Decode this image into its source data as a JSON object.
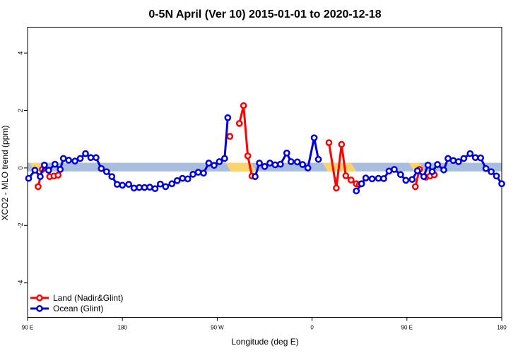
{
  "chart_data": {
    "type": "line",
    "title": "0-5N April (Ver 10)   2015-01-01 to 2020-12-18",
    "xlabel": "Longitude (deg E)",
    "ylabel": "XCO2 - MLO trend (ppm)",
    "x_ticks": [
      {
        "value": 90,
        "label": "90 E"
      },
      {
        "value": 180,
        "label": "180"
      },
      {
        "value": 270,
        "label": "90 W"
      },
      {
        "value": 360,
        "label": "0"
      },
      {
        "value": 450,
        "label": "90 E"
      },
      {
        "value": 540,
        "label": "180"
      }
    ],
    "y_ticks": [
      -4,
      -2,
      0,
      2,
      4
    ],
    "xlim": [
      90,
      540
    ],
    "ylim": [
      -5.2,
      4.9
    ],
    "legend_position": "bottom-left",
    "colors": {
      "land": "#ff0000",
      "ocean": "#0000dd",
      "ocean_band": "#a9bddf",
      "land_band": "#ffd36b"
    },
    "land_bands": [
      {
        "x": [
          92,
          102
        ],
        "y": [
          -0.12,
          0.18
        ]
      },
      {
        "x": [
          278,
          302
        ],
        "y": [
          -0.12,
          0.18
        ]
      },
      {
        "x": [
          370,
          397
        ],
        "y": [
          -0.12,
          0.18
        ]
      },
      {
        "x": [
          452,
          462
        ],
        "y": [
          -0.12,
          0.18
        ]
      }
    ],
    "series": [
      {
        "name": "Land (Nadir&Glint)",
        "key": "land",
        "segments": [
          [
            [
              100,
              -0.65
            ],
            [
              104,
              -0.05
            ]
          ],
          [
            [
              111,
              -0.3
            ],
            [
              115,
              -0.28
            ],
            [
              119,
              -0.25
            ]
          ],
          [
            [
              282,
              1.1
            ]
          ],
          [
            [
              291,
              1.55
            ],
            [
              295,
              2.17
            ],
            [
              299,
              0.42
            ],
            [
              303,
              -0.28
            ]
          ],
          [
            [
              376,
              0.88
            ],
            [
              383,
              -0.7
            ],
            [
              388,
              0.82
            ],
            [
              392,
              -0.27
            ],
            [
              397,
              -0.42
            ],
            [
              402,
              -0.55
            ],
            [
              405,
              -0.57
            ]
          ],
          [
            [
              458,
              -0.65
            ],
            [
              462,
              -0.05
            ]
          ],
          [
            [
              468,
              -0.32
            ],
            [
              472,
              -0.28
            ],
            [
              476,
              -0.24
            ]
          ]
        ]
      },
      {
        "name": "Ocean (Glint)",
        "key": "ocean",
        "segments": [
          [
            [
              91,
              -0.36
            ],
            [
              97,
              -0.08
            ],
            [
              102,
              -0.3
            ],
            [
              106,
              0.1
            ],
            [
              110,
              -0.08
            ],
            [
              116,
              0.13
            ],
            [
              121,
              -0.05
            ],
            [
              124,
              0.33
            ],
            [
              129,
              0.27
            ],
            [
              135,
              0.24
            ],
            [
              140,
              0.33
            ],
            [
              145,
              0.5
            ],
            [
              150,
              0.36
            ],
            [
              155,
              0.36
            ],
            [
              160,
              -0.02
            ],
            [
              165,
              -0.13
            ],
            [
              170,
              -0.3
            ],
            [
              175,
              -0.57
            ],
            [
              180,
              -0.6
            ],
            [
              186,
              -0.57
            ],
            [
              191,
              -0.7
            ],
            [
              196,
              -0.68
            ],
            [
              201,
              -0.68
            ],
            [
              206,
              -0.67
            ],
            [
              211,
              -0.72
            ],
            [
              216,
              -0.56
            ],
            [
              221,
              -0.65
            ],
            [
              227,
              -0.55
            ],
            [
              232,
              -0.44
            ],
            [
              237,
              -0.36
            ],
            [
              242,
              -0.38
            ],
            [
              247,
              -0.22
            ],
            [
              252,
              -0.15
            ],
            [
              257,
              -0.18
            ],
            [
              262,
              0.17
            ],
            [
              267,
              0.09
            ],
            [
              272,
              0.22
            ],
            [
              277,
              0.33
            ],
            [
              280,
              1.75
            ]
          ],
          [
            [
              306,
              -0.3
            ],
            [
              310,
              0.17
            ],
            [
              315,
              0.05
            ],
            [
              320,
              0.17
            ],
            [
              325,
              0.11
            ],
            [
              330,
              0.13
            ],
            [
              336,
              0.52
            ],
            [
              340,
              0.22
            ],
            [
              346,
              0.21
            ],
            [
              351,
              0.12
            ],
            [
              356,
              0.0
            ],
            [
              362,
              1.05
            ],
            [
              366,
              0.3
            ]
          ],
          [
            [
              402,
              -0.8
            ],
            [
              407,
              -0.55
            ],
            [
              411,
              -0.35
            ],
            [
              417,
              -0.38
            ],
            [
              423,
              -0.36
            ],
            [
              428,
              -0.37
            ],
            [
              433,
              -0.11
            ],
            [
              438,
              -0.05
            ],
            [
              444,
              -0.23
            ],
            [
              449,
              -0.43
            ],
            [
              455,
              -0.4
            ],
            [
              460,
              -0.1
            ],
            [
              466,
              -0.3
            ],
            [
              470,
              0.1
            ],
            [
              474,
              -0.13
            ],
            [
              479,
              0.12
            ],
            [
              485,
              -0.07
            ],
            [
              489,
              0.33
            ],
            [
              494,
              0.26
            ],
            [
              499,
              0.22
            ],
            [
              504,
              0.33
            ],
            [
              510,
              0.5
            ],
            [
              515,
              0.36
            ],
            [
              520,
              0.35
            ],
            [
              525,
              -0.02
            ],
            [
              530,
              -0.13
            ],
            [
              535,
              -0.28
            ],
            [
              540,
              -0.55
            ]
          ]
        ]
      }
    ]
  }
}
